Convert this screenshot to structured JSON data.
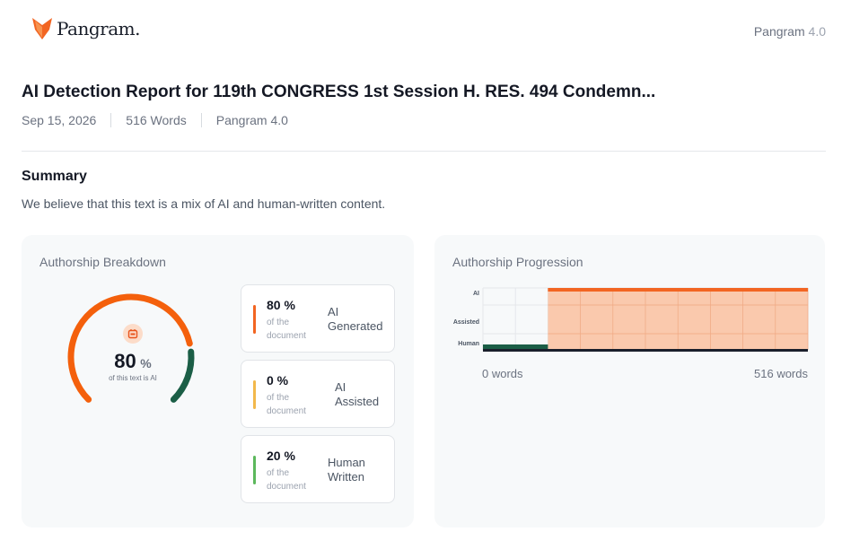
{
  "brand": {
    "name": "Pangram.",
    "logo_icon": "fox-logo-icon",
    "accent": "#f26522"
  },
  "header": {
    "version_label": "Pangram",
    "version_num": "4.0"
  },
  "report": {
    "title": "AI Detection Report for 119th CONGRESS 1st Session H. RES. 494 Condemn...",
    "date": "Sep 15, 2026",
    "words": "516 Words",
    "model": "Pangram 4.0"
  },
  "summary": {
    "heading": "Summary",
    "text": "We believe that this text is a mix of AI and human-written content."
  },
  "breakdown": {
    "title": "Authorship Breakdown",
    "gauge": {
      "value": "80",
      "unit": "%",
      "caption": "of this text is AI",
      "ai_fraction": 0.8,
      "human_fraction": 0.2
    },
    "stats": [
      {
        "pct": "80 %",
        "sub1": "of the",
        "sub2": "document",
        "label1": "AI",
        "label2": "Generated",
        "color": "#f26522"
      },
      {
        "pct": "0 %",
        "sub1": "of the",
        "sub2": "document",
        "label1": "AI",
        "label2": "Assisted",
        "color": "#f2b84b"
      },
      {
        "pct": "20 %",
        "sub1": "of the",
        "sub2": "document",
        "label1": "Human",
        "label2": "Written",
        "color": "#5cb85c"
      }
    ]
  },
  "progression": {
    "title": "Authorship Progression",
    "rows": [
      "AI",
      "Assisted",
      "Human"
    ],
    "start_label": "0 words",
    "end_label": "516 words",
    "human_end_fraction": 0.2,
    "colors": {
      "ai_line": "#f26522",
      "ai_fill": "#f9c3a4",
      "human": "#1b5e46",
      "axis": "#1a1f2b"
    }
  }
}
